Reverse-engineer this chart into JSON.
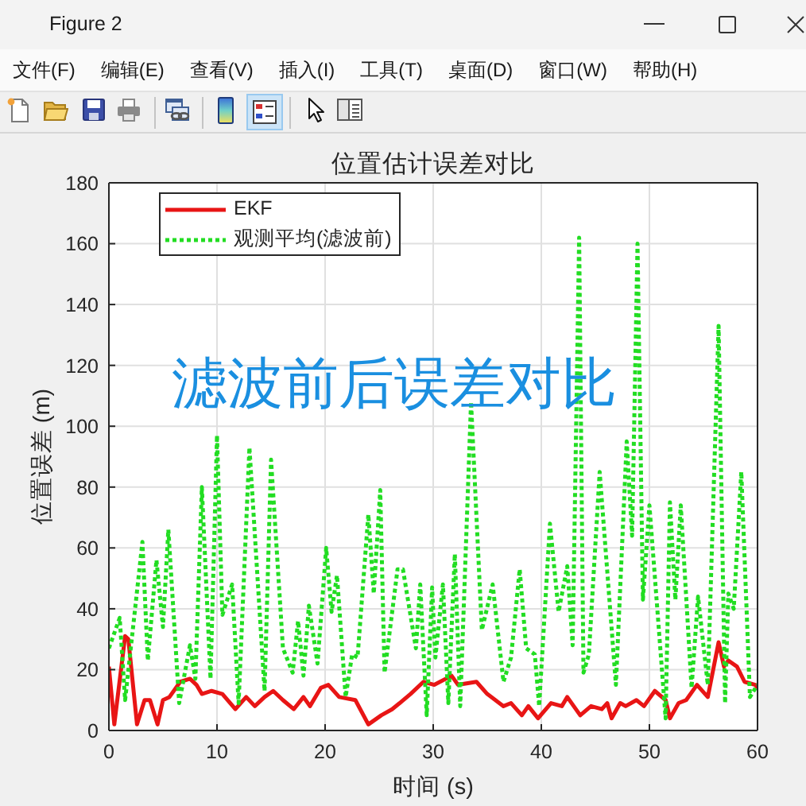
{
  "chart_data": {
    "type": "line",
    "title": "位置估计误差对比",
    "xlabel": "时间 (s)",
    "ylabel": "位置误差 (m)",
    "annotations": [
      "Figure 2",
      "文件(F)",
      "编辑(E)",
      "查看(V)",
      "插入(I)",
      "工具(T)",
      "桌面(D)",
      "窗口(W)",
      "帮助(H)",
      "滤波前后误差对比"
    ],
    "series": [
      {
        "name": "EKF",
        "color": "#e81515",
        "line_style": "solid",
        "x": [
          0,
          0.5,
          1.5,
          1.8,
          2.6,
          3.3,
          3.8,
          4.5,
          5,
          5.6,
          6.6,
          7.5,
          8.1,
          8.6,
          9.5,
          10.5,
          11.7,
          12.7,
          13.5,
          14.4,
          15.2,
          16.1,
          17.1,
          18,
          18.6,
          19.6,
          20.3,
          21.3,
          22.8,
          24,
          25.2,
          26.2,
          26.9,
          27.9,
          29.1,
          30.1,
          31.7,
          32.3,
          34,
          35,
          36.5,
          37.2,
          38.2,
          38.8,
          39.7,
          40.9,
          41.9,
          42.4,
          43.6,
          44.6,
          45.6,
          46.1,
          46.5,
          47.3,
          47.8,
          48.8,
          49.5,
          50.5,
          51.5,
          51.9,
          52.7,
          53.4,
          54.4,
          55.4,
          56.4,
          56.9,
          57.3,
          58.1,
          58.8,
          59.8,
          60
        ],
        "values": [
          21,
          2,
          31,
          30,
          2,
          10,
          10,
          2,
          10,
          11,
          16,
          17,
          15,
          12,
          13,
          12,
          7,
          11,
          8,
          11,
          13,
          10,
          7,
          11,
          8,
          14,
          15,
          11,
          10,
          2,
          5,
          7,
          9,
          12,
          16,
          15,
          18,
          15,
          16,
          12,
          8,
          9,
          5,
          8,
          4,
          9,
          8,
          11,
          5,
          8,
          7,
          9,
          4,
          9,
          8,
          10,
          8,
          13,
          10,
          4,
          9,
          10,
          15,
          11,
          29,
          21,
          23,
          21,
          16,
          15,
          14
        ]
      },
      {
        "name": "观测平均(滤波前)",
        "color": "#22dd22",
        "line_style": "dotted",
        "x": [
          0,
          1,
          1.5,
          3.1,
          3.6,
          4.4,
          5,
          5.5,
          6.5,
          7.5,
          8,
          8.6,
          9.4,
          10,
          10.5,
          11.4,
          12,
          13,
          14.4,
          15,
          16.1,
          17,
          17.5,
          18,
          18.5,
          19.3,
          20.1,
          20.6,
          21.1,
          21.9,
          22.5,
          23,
          24,
          24.5,
          25.1,
          25.5,
          26.7,
          27.2,
          28.4,
          28.8,
          29.4,
          29.9,
          30.2,
          30.9,
          31.4,
          32,
          32.5,
          33.5,
          34.5,
          35.5,
          36.5,
          37.2,
          38,
          38.6,
          39.4,
          39.8,
          40.8,
          41.6,
          42.4,
          42.9,
          43.5,
          43.9,
          44.4,
          45.4,
          46.9,
          47.9,
          48.4,
          48.9,
          49.4,
          50,
          51.5,
          51.9,
          52.4,
          52.9,
          53.9,
          54.5,
          55.4,
          56.4,
          57,
          57.3,
          57.8,
          58.5,
          59.3,
          60
        ],
        "values": [
          27,
          37,
          10,
          62,
          23,
          56,
          34,
          66,
          9,
          28,
          17,
          80,
          17,
          97,
          38,
          48,
          9,
          93,
          13,
          89,
          27,
          19,
          36,
          18,
          41,
          22,
          60,
          39,
          51,
          11,
          25,
          24,
          71,
          45,
          79,
          19,
          53,
          53,
          27,
          48,
          5,
          47,
          24,
          48,
          9,
          58,
          8,
          108,
          33,
          48,
          16,
          24,
          53,
          27,
          25,
          8,
          68,
          39,
          54,
          28,
          162,
          19,
          25,
          85,
          15,
          95,
          64,
          160,
          43,
          74,
          4,
          75,
          43,
          74,
          14,
          44,
          15,
          133,
          9,
          45,
          40,
          85,
          11,
          15
        ]
      }
    ],
    "xlim": [
      0,
      60
    ],
    "xticks": [
      0,
      10,
      20,
      30,
      40,
      50,
      60
    ],
    "ylim": [
      0,
      180
    ],
    "yticks": [
      0,
      20,
      40,
      60,
      80,
      100,
      120,
      140,
      160,
      180
    ],
    "grid": true,
    "legend": "top left"
  }
}
